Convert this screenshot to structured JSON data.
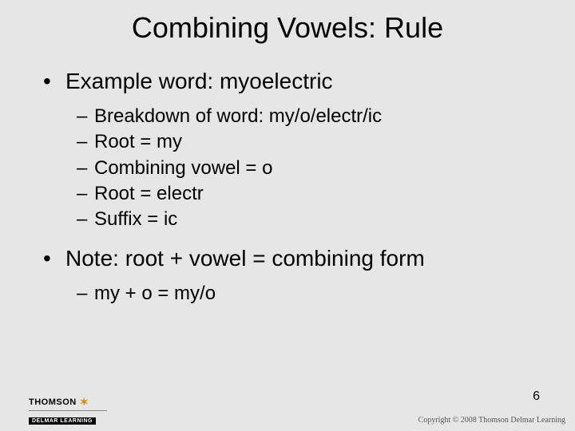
{
  "title": "Combining Vowels: Rule",
  "bullets": {
    "l1a": "Example word:  myoelectric",
    "l2a": "Breakdown of word: my/o/electr/ic",
    "l2b": "Root = my",
    "l2c": "Combining vowel = o",
    "l2d": "Root = electr",
    "l2e": "Suffix = ic",
    "l1b": "Note: root + vowel = combining form",
    "l2f": "my + o = my/o"
  },
  "bullet_glyph_l1": "•",
  "bullet_glyph_l2": "–",
  "page_number": "6",
  "footer": {
    "thomson": "THOMSON",
    "delmar": "DELMAR LEARNING",
    "copyright": "Copyright © 2008 Thomson Delmar Learning"
  },
  "colors": {
    "background": "#e6e6e6",
    "text": "#000000",
    "star": "#e48a00",
    "copyright_text": "#555555"
  },
  "typography": {
    "title_fontsize": 36,
    "l1_fontsize": 28,
    "l2_fontsize": 24,
    "font_family": "Arial"
  }
}
